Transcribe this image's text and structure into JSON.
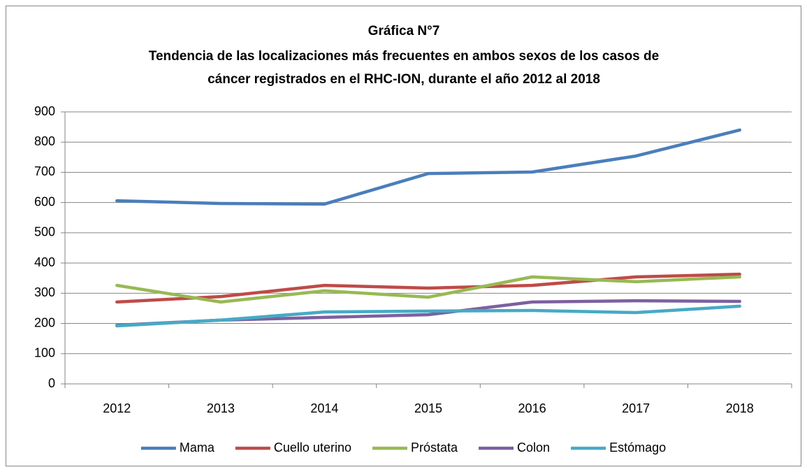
{
  "chart_data": {
    "type": "line",
    "title": [
      "Gráfica N°7",
      "Tendencia de las localizaciones más frecuentes en ambos sexos de los casos de",
      "cáncer registrados en el RHC-ION, durante el año 2012 al 2018"
    ],
    "categories": [
      "2012",
      "2013",
      "2014",
      "2015",
      "2016",
      "2017",
      "2018"
    ],
    "series": [
      {
        "name": "Mama",
        "color": "#4a7ebb",
        "values": [
          606,
          597,
          595,
          696,
          701,
          754,
          840
        ]
      },
      {
        "name": "Cuello uterino",
        "color": "#be4b48",
        "values": [
          271,
          289,
          326,
          317,
          326,
          354,
          363
        ]
      },
      {
        "name": "Próstata",
        "color": "#98b954",
        "values": [
          326,
          271,
          308,
          287,
          354,
          338,
          354
        ]
      },
      {
        "name": "Colon",
        "color": "#7d60a0",
        "values": [
          194,
          211,
          220,
          229,
          271,
          275,
          273
        ]
      },
      {
        "name": "Estómago",
        "color": "#46aac5",
        "values": [
          192,
          211,
          238,
          241,
          243,
          236,
          257
        ]
      }
    ],
    "ylim": [
      0,
      900
    ],
    "yticks": [
      0,
      100,
      200,
      300,
      400,
      500,
      600,
      700,
      800,
      900
    ],
    "grid": true,
    "legend": "bottom"
  }
}
